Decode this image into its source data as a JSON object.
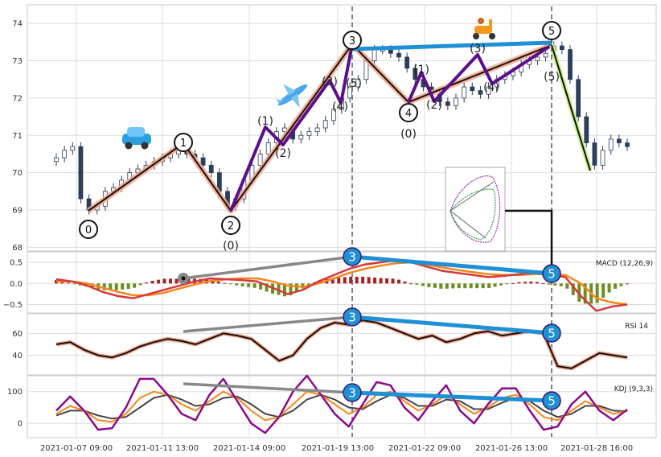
{
  "chart_data": {
    "type": "candlestick-with-indicators",
    "x_ticks": [
      "2021-01-07 09:00",
      "2021-01-11 13:00",
      "2021-01-14 09:00",
      "2021-01-19 13:00",
      "2021-01-22 09:00",
      "2021-01-26 13:00",
      "2021-01-28 16:00"
    ],
    "price_panel": {
      "ylim": [
        67.9,
        74.5
      ],
      "y_ticks": [
        "68",
        "69",
        "70",
        "71",
        "72",
        "73",
        "74"
      ],
      "candles_close": [
        70.4,
        70.6,
        70.7,
        69.3,
        69.0,
        69.1,
        69.5,
        69.6,
        69.8,
        70.0,
        70.1,
        70.2,
        70.3,
        70.4,
        70.5,
        70.7,
        70.5,
        70.4,
        70.2,
        70.0,
        69.5,
        69.1,
        69.3,
        69.8,
        70.2,
        70.5,
        70.8,
        71.1,
        71.2,
        70.9,
        71.0,
        71.1,
        71.2,
        71.4,
        71.7,
        72.0,
        72.3,
        72.5,
        73.0,
        73.3,
        73.3,
        73.2,
        73.1,
        72.8,
        72.5,
        72.3,
        72.1,
        71.9,
        71.8,
        72.0,
        72.3,
        72.2,
        72.1,
        72.3,
        72.5,
        72.6,
        72.7,
        72.9,
        73.0,
        73.1,
        73.2,
        73.4,
        73.3,
        72.5,
        71.5,
        70.8,
        70.2,
        70.6,
        70.9,
        70.8,
        70.7
      ]
    },
    "wave_labels": [
      "0",
      "1",
      "(1)",
      "2",
      "(2)",
      "(0)",
      "(3)",
      "(4)",
      "3",
      "(5)",
      "(1)",
      "4",
      "(2)",
      "(0)",
      "(3)",
      "(4)",
      "5",
      "(5)"
    ],
    "macd_panel": {
      "title": "MACD (12,26,9)",
      "ylim": [
        -0.7,
        0.75
      ],
      "y_ticks": [
        "0.5",
        "0.0",
        "−0.5"
      ],
      "macd": [
        0.1,
        0.05,
        -0.05,
        -0.2,
        -0.3,
        -0.35,
        -0.25,
        -0.15,
        -0.05,
        0.05,
        0.12,
        0.1,
        0.08,
        0.05,
        -0.1,
        -0.25,
        -0.15,
        0.05,
        0.2,
        0.35,
        0.45,
        0.5,
        0.55,
        0.5,
        0.4,
        0.3,
        0.25,
        0.2,
        0.15,
        0.18,
        0.22,
        0.25,
        0.2,
        0.15,
        -0.3,
        -0.65,
        -0.55,
        -0.5
      ],
      "signal": [
        0.05,
        0.05,
        0.0,
        -0.1,
        -0.2,
        -0.28,
        -0.28,
        -0.22,
        -0.12,
        -0.02,
        0.06,
        0.1,
        0.12,
        0.12,
        0.05,
        -0.05,
        -0.08,
        0.0,
        0.12,
        0.25,
        0.35,
        0.42,
        0.48,
        0.5,
        0.45,
        0.38,
        0.32,
        0.27,
        0.22,
        0.2,
        0.2,
        0.22,
        0.22,
        0.2,
        0.0,
        -0.35,
        -0.45,
        -0.5
      ]
    },
    "rsi_panel": {
      "title": "RSI 14",
      "ylim": [
        22,
        78
      ],
      "y_ticks": [
        "60",
        "40"
      ],
      "values": [
        50,
        52,
        45,
        40,
        38,
        42,
        48,
        52,
        55,
        53,
        50,
        55,
        60,
        58,
        55,
        45,
        35,
        40,
        55,
        65,
        70,
        68,
        72,
        70,
        65,
        60,
        55,
        58,
        52,
        55,
        60,
        62,
        58,
        60,
        62,
        60,
        30,
        28,
        35,
        42,
        40,
        38
      ]
    },
    "kdj_panel": {
      "title": "KDJ (9,3,3)",
      "ylim": [
        -45,
        150
      ],
      "y_ticks": [
        "100",
        "0"
      ],
      "k": [
        30,
        55,
        40,
        10,
        5,
        30,
        80,
        100,
        90,
        60,
        40,
        70,
        100,
        80,
        40,
        10,
        20,
        60,
        100,
        90,
        60,
        30,
        50,
        90,
        100,
        70,
        40,
        60,
        90,
        60,
        30,
        50,
        80,
        90,
        60,
        20,
        10,
        40,
        70,
        50,
        30,
        40
      ],
      "d": [
        25,
        40,
        40,
        25,
        15,
        20,
        50,
        80,
        90,
        75,
        55,
        60,
        80,
        85,
        60,
        30,
        20,
        40,
        75,
        90,
        75,
        50,
        45,
        70,
        90,
        80,
        55,
        55,
        75,
        70,
        45,
        45,
        65,
        80,
        70,
        40,
        20,
        30,
        55,
        55,
        40,
        38
      ],
      "j": [
        40,
        85,
        40,
        -20,
        -15,
        50,
        140,
        140,
        90,
        30,
        10,
        90,
        140,
        70,
        0,
        -30,
        20,
        100,
        150,
        90,
        30,
        -10,
        60,
        130,
        120,
        50,
        10,
        70,
        120,
        40,
        0,
        60,
        110,
        110,
        40,
        -20,
        -10,
        60,
        100,
        40,
        10,
        44
      ]
    },
    "divergence_markers": [
      "3",
      "5"
    ],
    "legend": "none",
    "grid": true,
    "colors": {
      "candle_up": "#ffffff",
      "candle_down": "#2c3e5a",
      "wave_primary": "#111111",
      "wave_glow": "#f4a58a",
      "wave_sub": "#5b0f8a",
      "divergence": "#1f8fd6",
      "divergence_prior": "#888888",
      "macd_line": "#d43a3a",
      "signal_line": "#f7861c",
      "hist_pos": "#a32424",
      "hist_neg": "#6b8e23",
      "rsi_line": "#111111",
      "kdj_k": "#f7861c",
      "kdj_d": "#444444",
      "kdj_j": "#8b0a8b",
      "grid": "#dddddd",
      "vline": "#4a5a6a"
    }
  }
}
